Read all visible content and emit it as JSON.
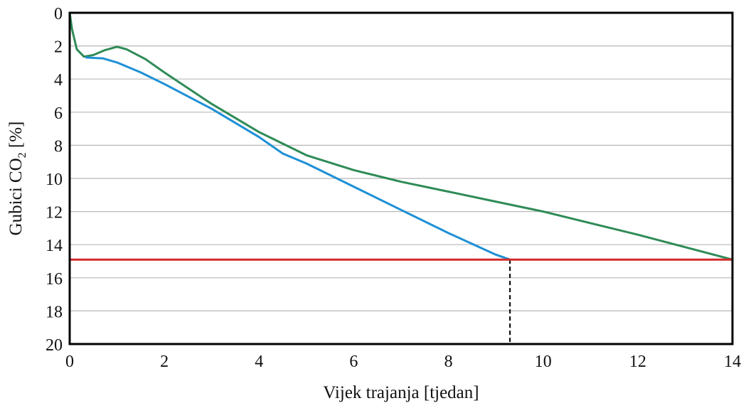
{
  "chart_data": {
    "type": "line",
    "xlabel": "Vijek trajanja [tjedan]",
    "ylabel": "Gubici CO",
    "ylabel_subscript": "2",
    "ylabel_suffix": " [%]",
    "xlim": [
      0,
      14
    ],
    "ylim": [
      0,
      20
    ],
    "y_inverted": true,
    "grid": "horizontal",
    "x_ticks": [
      "0",
      "2",
      "4",
      "6",
      "8",
      "10",
      "12",
      "14"
    ],
    "y_ticks": [
      "0",
      "2",
      "4",
      "6",
      "8",
      "10",
      "12",
      "14",
      "16",
      "18",
      "20"
    ],
    "series": [
      {
        "color": "#2E8B57",
        "x": [
          0,
          0.05,
          0.15,
          0.3,
          0.5,
          0.75,
          1.0,
          1.2,
          1.6,
          2.0,
          3.0,
          4.0,
          5.0,
          6.0,
          7.0,
          8.0,
          9.0,
          10.0,
          11.0,
          12.0,
          13.0,
          14.0
        ],
        "y": [
          0,
          1.0,
          2.2,
          2.65,
          2.55,
          2.25,
          2.05,
          2.2,
          2.8,
          3.6,
          5.5,
          7.2,
          8.6,
          9.5,
          10.2,
          10.8,
          11.4,
          12.0,
          12.7,
          13.4,
          14.15,
          14.9
        ]
      },
      {
        "color": "#1E90D6",
        "x": [
          0.35,
          0.7,
          1.0,
          1.5,
          2.0,
          3.0,
          4.0,
          4.5,
          5.0,
          6.0,
          7.0,
          8.0,
          9.0,
          9.3
        ],
        "y": [
          2.7,
          2.75,
          3.0,
          3.6,
          4.3,
          5.8,
          7.5,
          8.5,
          9.1,
          10.5,
          11.9,
          13.3,
          14.6,
          14.9
        ]
      },
      {
        "color": "#D42A2A",
        "x": [
          0,
          14
        ],
        "y": [
          14.9,
          14.9
        ]
      }
    ],
    "reference_lines": [
      {
        "x": 9.3,
        "y_from": 14.9,
        "y_to": 20,
        "style": "dashed"
      },
      {
        "x": 14.0,
        "y_from": 14.9,
        "y_to": 20,
        "style": "dashed"
      }
    ]
  }
}
